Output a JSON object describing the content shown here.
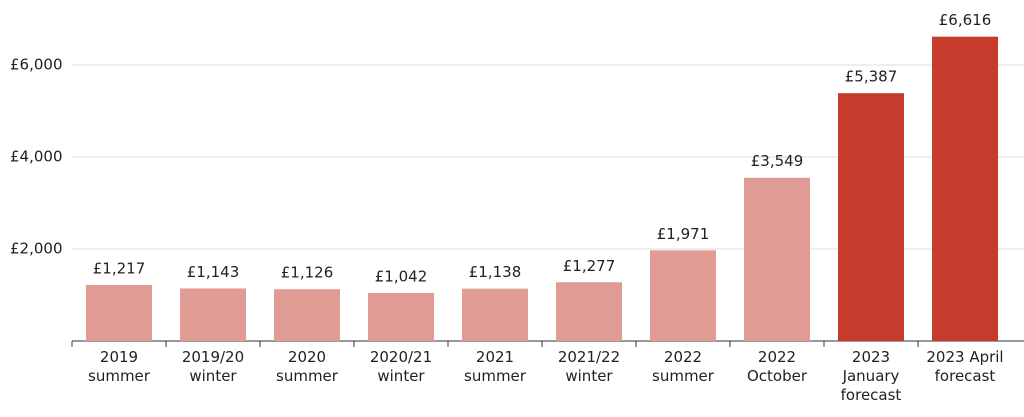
{
  "chart_data": {
    "type": "bar",
    "categories": [
      "2019 summer",
      "2019/20 winter",
      "2020 summer",
      "2020/21 winter",
      "2021 summer",
      "2021/22 winter",
      "2022 summer",
      "2022 October",
      "2023 January forecast",
      "2023 April forecast"
    ],
    "values": [
      1217,
      1143,
      1126,
      1042,
      1138,
      1277,
      1971,
      3549,
      5387,
      6616
    ],
    "value_labels": [
      "£1,217",
      "£1,143",
      "£1,126",
      "£1,042",
      "£1,138",
      "£1,277",
      "£1,971",
      "£3,549",
      "£5,387",
      "£6,616"
    ],
    "colors": [
      "#e09c94",
      "#e09c94",
      "#e09c94",
      "#e09c94",
      "#e09c94",
      "#e09c94",
      "#e09c94",
      "#e09c94",
      "#c63b2b",
      "#c63b2b"
    ],
    "ylim": [
      0,
      7000
    ],
    "yticks": [
      {
        "value": 2000,
        "label": "£2,000"
      },
      {
        "value": 4000,
        "label": "£4,000"
      },
      {
        "value": 6000,
        "label": "£6,000"
      }
    ],
    "grid": true
  }
}
